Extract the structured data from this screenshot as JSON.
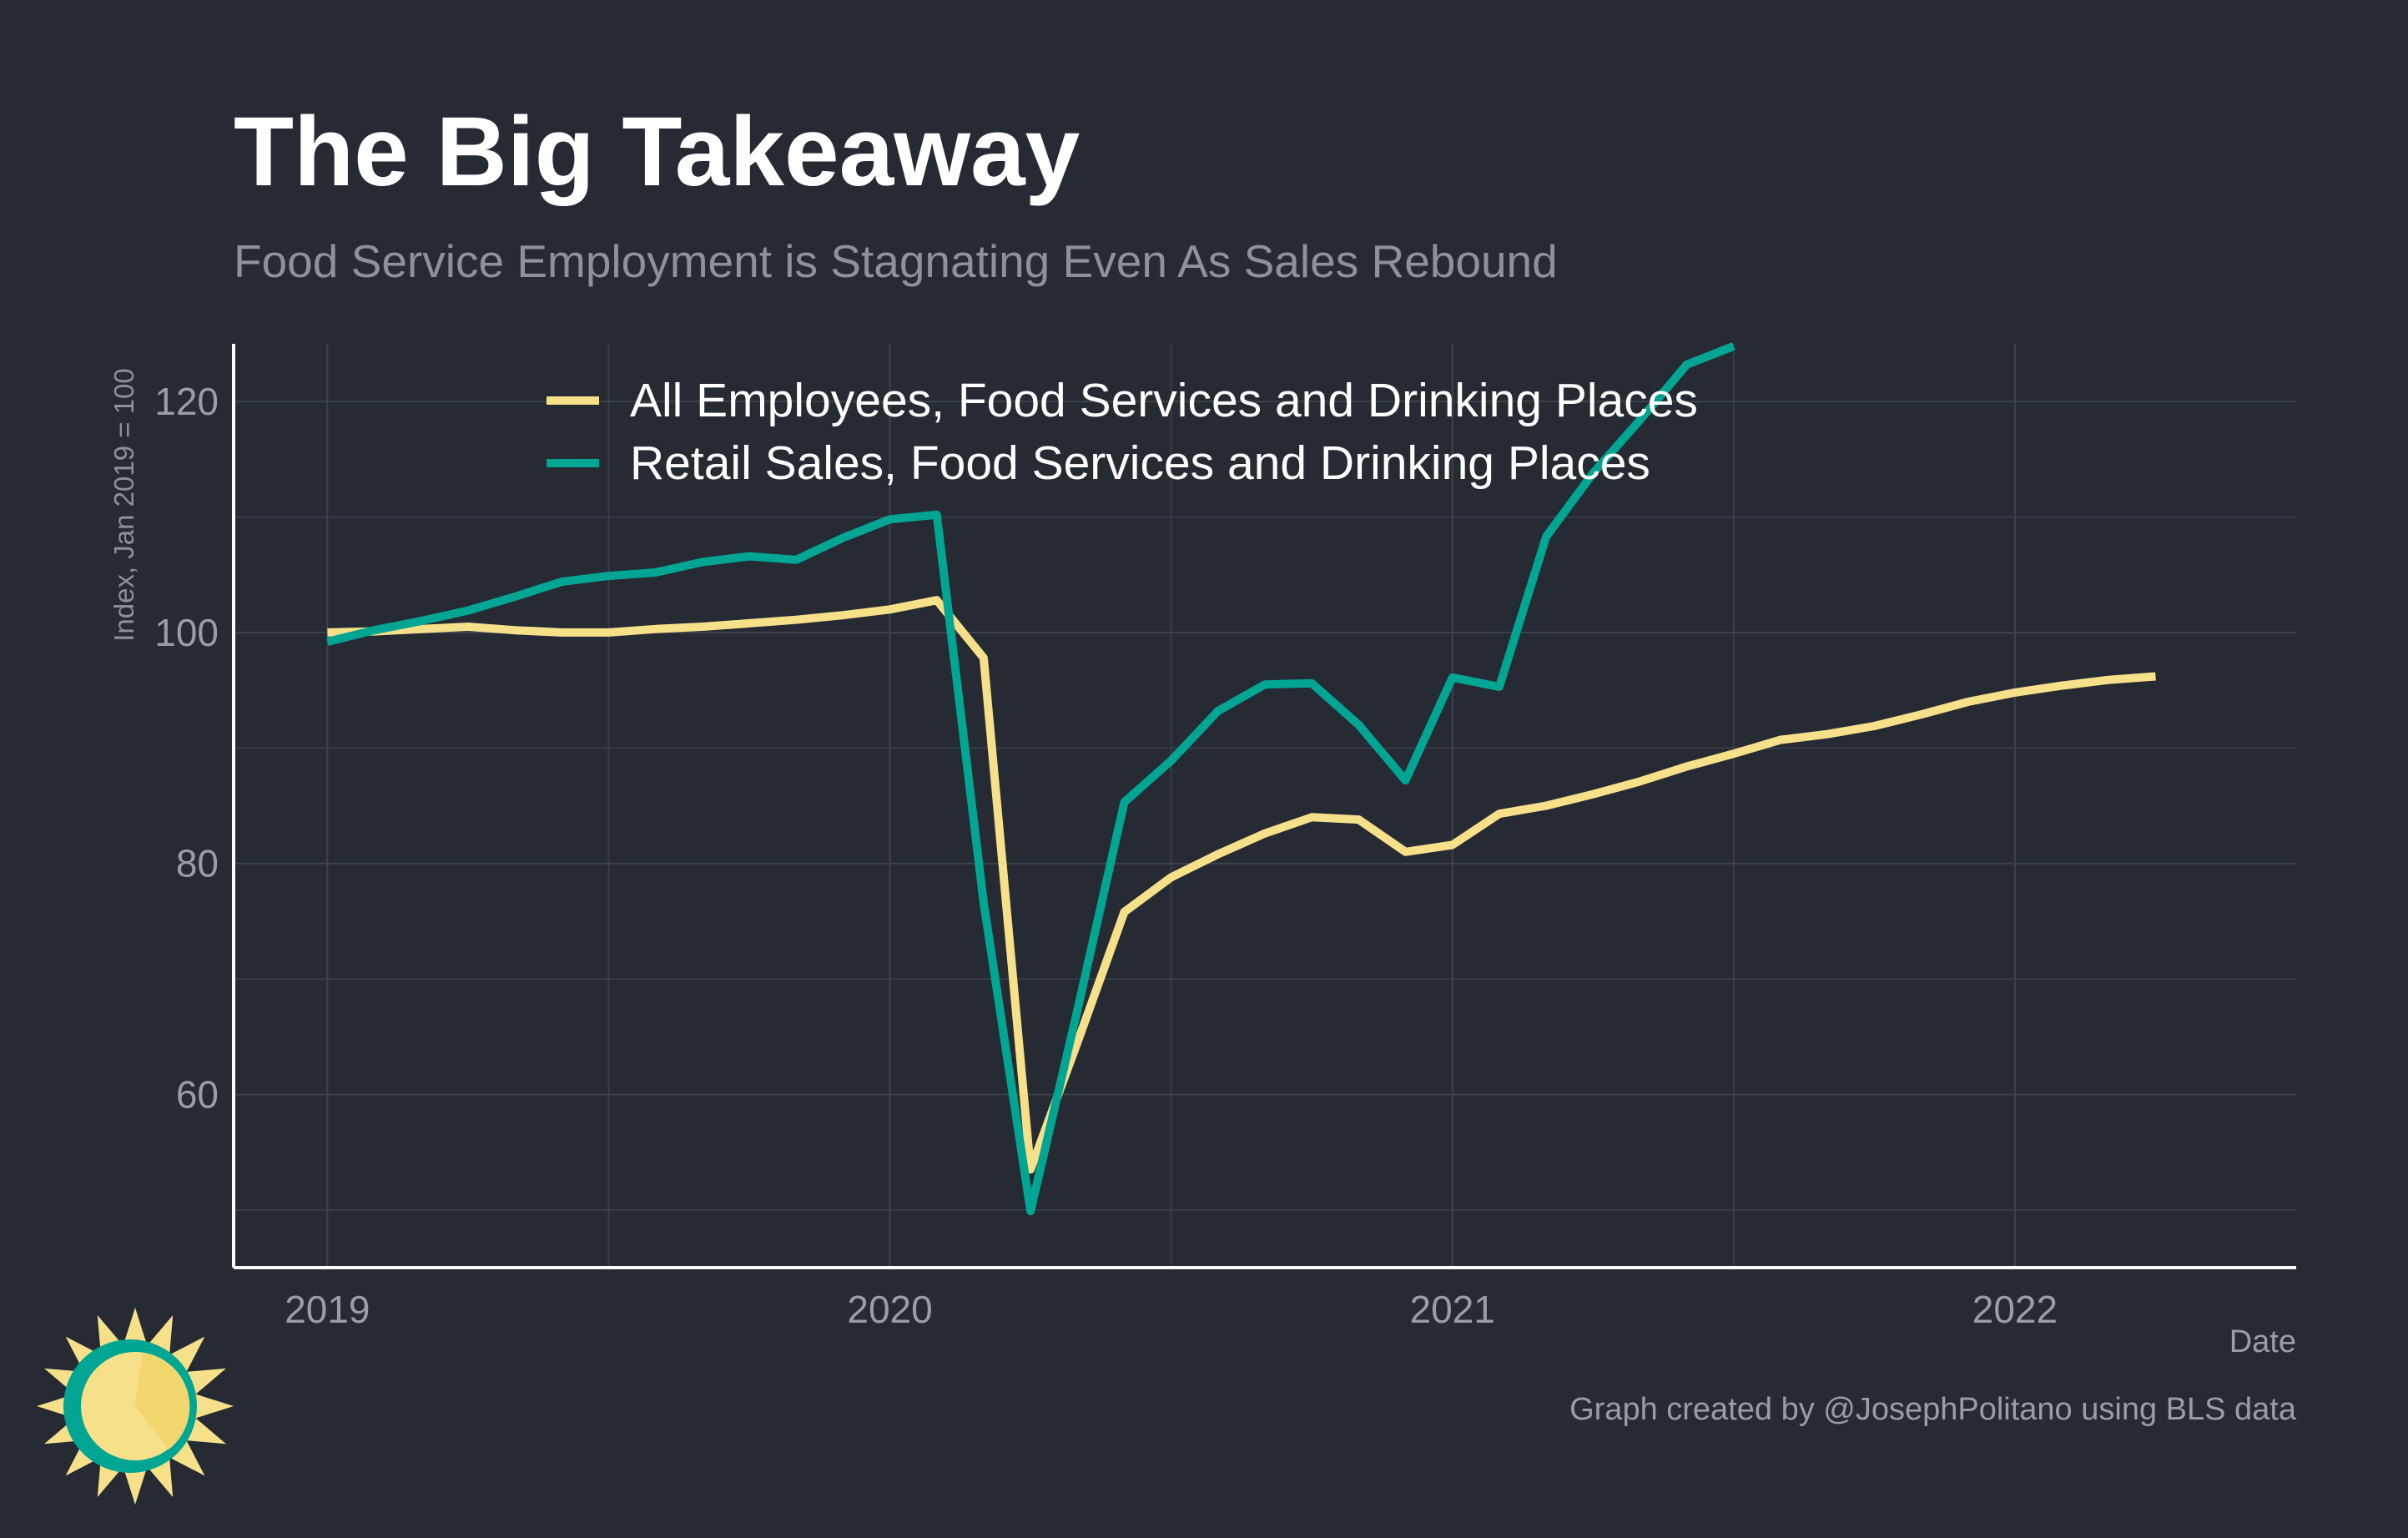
{
  "title": "The Big Takeaway",
  "subtitle": "Food Service Employment is Stagnating Even As Sales Rebound",
  "caption": "Graph created by @JosephPolitano using BLS data",
  "colors": {
    "background": "#252a33",
    "employment": "#f7e08a",
    "sales": "#00a693",
    "grid": "#3d424b",
    "axis": "#ffffff",
    "logo_ring": "#00a693",
    "logo_sun": "#f7e08a"
  },
  "logo": {
    "icon": "sun-clock-logo-icon"
  },
  "chart_data": {
    "type": "line",
    "title": "The Big Takeaway",
    "subtitle": "Food Service Employment is Stagnating Even As Sales Rebound",
    "xlabel": "Date",
    "ylabel": "Index, Jan 2019 = 100",
    "xlim": [
      "2018-11-01",
      "2022-07-01"
    ],
    "ylim": [
      45,
      125
    ],
    "yticks": [
      60,
      80,
      100,
      120
    ],
    "xticks": [
      "2019",
      "2020",
      "2021",
      "2022"
    ],
    "grid": true,
    "legend_position": "top",
    "series": [
      {
        "name": "All Employees, Food Services and Drinking Places",
        "color": "#f7e08a",
        "x": [
          "2019-01",
          "2019-02",
          "2019-03",
          "2019-04",
          "2019-05",
          "2019-06",
          "2019-07",
          "2019-08",
          "2019-09",
          "2019-10",
          "2019-11",
          "2019-12",
          "2020-01",
          "2020-02",
          "2020-03",
          "2020-04",
          "2020-05",
          "2020-06",
          "2020-07",
          "2020-08",
          "2020-09",
          "2020-10",
          "2020-11",
          "2020-12",
          "2021-01",
          "2021-02",
          "2021-03",
          "2021-04",
          "2021-05",
          "2021-06",
          "2021-07",
          "2021-08",
          "2021-09",
          "2021-10",
          "2021-11",
          "2021-12",
          "2022-01",
          "2022-02",
          "2022-03",
          "2022-04"
        ],
        "y": [
          100.0,
          100.1,
          100.3,
          100.5,
          100.2,
          100.0,
          100.0,
          100.3,
          100.5,
          100.8,
          101.1,
          101.5,
          102.0,
          102.8,
          97.8,
          53.5,
          64.5,
          75.8,
          78.8,
          80.8,
          82.6,
          84.0,
          83.8,
          81.0,
          81.6,
          84.3,
          85.0,
          86.0,
          87.1,
          88.4,
          89.5,
          90.7,
          91.2,
          91.9,
          92.9,
          94.0,
          94.8,
          95.4,
          95.9,
          96.2
        ]
      },
      {
        "name": "Retail Sales, Food Services and Drinking Places",
        "color": "#00a693",
        "x": [
          "2019-01",
          "2019-02",
          "2019-03",
          "2019-04",
          "2019-05",
          "2019-06",
          "2019-07",
          "2019-08",
          "2019-09",
          "2019-10",
          "2019-11",
          "2019-12",
          "2020-01",
          "2020-02",
          "2020-03",
          "2020-04",
          "2020-05",
          "2020-06",
          "2020-07",
          "2020-08",
          "2020-09",
          "2020-10",
          "2020-11",
          "2020-12",
          "2021-01",
          "2021-02",
          "2021-03",
          "2021-04",
          "2021-05",
          "2021-06",
          "2021-07"
        ],
        "y": [
          99.2,
          100.2,
          101.0,
          101.9,
          103.1,
          104.4,
          104.9,
          105.2,
          106.1,
          106.6,
          106.3,
          108.2,
          109.8,
          110.2,
          76.6,
          49.9,
          67.3,
          85.3,
          88.9,
          93.2,
          95.5,
          95.6,
          92.0,
          87.2,
          96.1,
          95.3,
          108.3,
          113.8,
          118.4,
          123.2,
          124.8
        ]
      }
    ]
  }
}
